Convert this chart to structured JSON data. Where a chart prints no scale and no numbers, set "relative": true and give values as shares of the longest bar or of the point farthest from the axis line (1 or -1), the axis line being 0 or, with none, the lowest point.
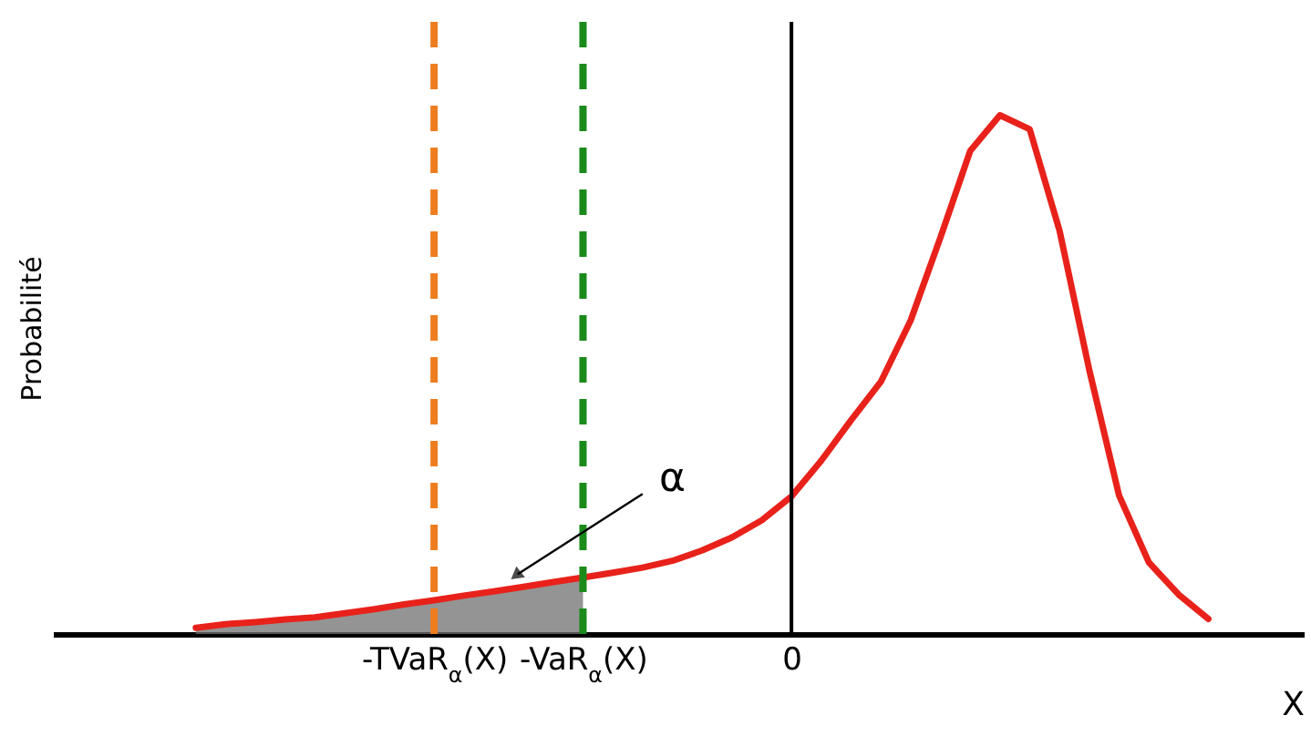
{
  "chart_data": {
    "type": "line",
    "relative": true,
    "xlabel": "X",
    "ylabel": "Probabilité",
    "categories": [
      null,
      null,
      null,
      null,
      null,
      null,
      null,
      null,
      "-TVaR$_{α}$(X)",
      null,
      null,
      null,
      null,
      "-VaR$_{α}$(X)",
      null,
      null,
      null,
      null,
      null,
      null,
      "0",
      null,
      null,
      null,
      null,
      null,
      null,
      null,
      null,
      null,
      null,
      null,
      null,
      null,
      null
    ],
    "series": [
      {
        "color": "#e8221b",
        "values": [
          0.012,
          0.019,
          0.023,
          0.028,
          0.032,
          0.04,
          0.048,
          0.057,
          0.065,
          0.074,
          0.082,
          0.091,
          0.1,
          0.109,
          0.118,
          0.128,
          0.141,
          0.161,
          0.186,
          0.219,
          0.265,
          0.334,
          0.412,
          0.486,
          0.604,
          0.764,
          0.931,
          1,
          0.973,
          0.778,
          0.509,
          0.267,
          0.138,
          0.076,
          0.029
        ]
      },
      {
        "type": "area",
        "color": "#707070",
        "values": [
          0.012,
          0.019,
          0.023,
          0.028,
          0.032,
          0.04,
          0.048,
          0.057,
          0.065,
          0.074,
          0.082,
          0.091,
          0.1,
          0.109,
          null,
          null,
          null,
          null,
          null,
          null,
          null,
          null,
          null,
          null,
          null,
          null,
          null,
          null,
          null,
          null,
          null,
          null,
          null,
          null,
          null
        ]
      }
    ],
    "ref_lines": [
      {
        "axis": "x",
        "value": "-TVaR$_{α}$(X)",
        "color": "#ed7d1f",
        "line_style": "dashed"
      },
      {
        "axis": "x",
        "value": "-VaR$_{α}$(X)",
        "color": "#1a8a1a",
        "line_style": "dashed"
      },
      {
        "axis": "x",
        "value": "0",
        "color": "#000000",
        "line_style": "solid"
      }
    ],
    "annotations": [
      "α"
    ],
    "grid": false,
    "line_style": "solid",
    "marker": "none"
  }
}
